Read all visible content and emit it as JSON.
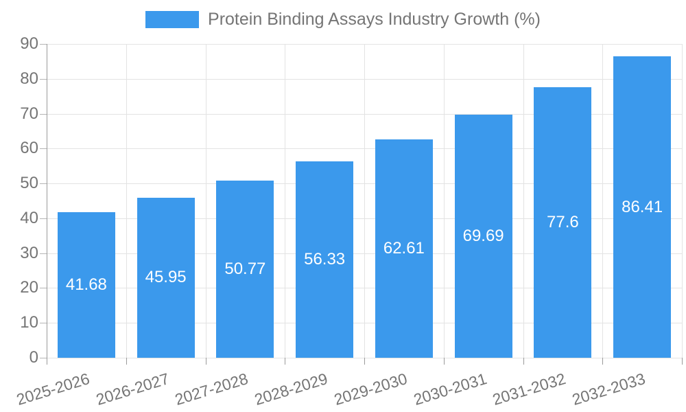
{
  "legend": {
    "label": "Protein Binding Assays Industry Growth (%)"
  },
  "chart_data": {
    "type": "bar",
    "title": "",
    "series_name": "Protein Binding Assays Industry Growth (%)",
    "categories": [
      "2025-2026",
      "2026-2027",
      "2027-2028",
      "2028-2029",
      "2029-2030",
      "2030-2031",
      "2031-2032",
      "2032-2033"
    ],
    "values": [
      41.68,
      45.95,
      50.77,
      56.33,
      62.61,
      69.69,
      77.6,
      86.41
    ],
    "value_labels": [
      "41.68",
      "45.95",
      "50.77",
      "56.33",
      "62.61",
      "69.69",
      "77.6",
      "86.41"
    ],
    "xlabel": "",
    "ylabel": "",
    "ylim": [
      0,
      90
    ],
    "ytick_step": 10,
    "ytick_labels": [
      "0",
      "10",
      "20",
      "30",
      "40",
      "50",
      "60",
      "70",
      "80",
      "90"
    ],
    "grid": true,
    "legend_position": "top",
    "colors": {
      "bar": "#3b99ec",
      "value_label": "#ffffff",
      "axis_text": "#757575",
      "grid_line": "#e3e3e3",
      "axis_line": "#9a9a9a"
    }
  }
}
